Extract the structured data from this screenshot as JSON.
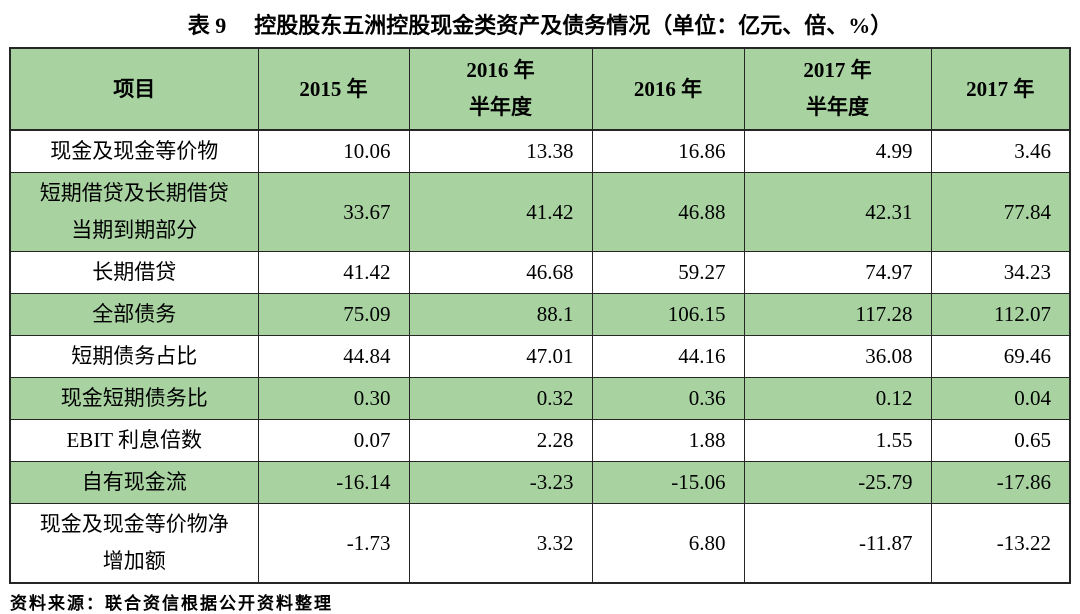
{
  "title": {
    "prefix": "表 9",
    "text": "控股股东五洲控股现金类资产及债务情况（单位：亿元、倍、%）"
  },
  "source_note": "资料来源：联合资信根据公开资料整理",
  "colors": {
    "table_green": "#a8d3a1",
    "border": "#262626",
    "text": "#000000"
  },
  "chart_data": {
    "type": "table",
    "columns": [
      {
        "label_lines": [
          "项目"
        ]
      },
      {
        "label_lines": [
          "2015 年"
        ]
      },
      {
        "label_lines": [
          "2016 年",
          "半年度"
        ]
      },
      {
        "label_lines": [
          "2016 年"
        ]
      },
      {
        "label_lines": [
          "2017 年",
          "半年度"
        ]
      },
      {
        "label_lines": [
          "2017 年"
        ]
      }
    ],
    "rows": [
      {
        "label_lines": [
          "现金及现金等价物"
        ],
        "values": [
          "10.06",
          "13.38",
          "16.86",
          "4.99",
          "3.46"
        ],
        "shaded": false
      },
      {
        "label_lines": [
          "短期借贷及长期借贷",
          "当期到期部分"
        ],
        "values": [
          "33.67",
          "41.42",
          "46.88",
          "42.31",
          "77.84"
        ],
        "shaded": true
      },
      {
        "label_lines": [
          "长期借贷"
        ],
        "values": [
          "41.42",
          "46.68",
          "59.27",
          "74.97",
          "34.23"
        ],
        "shaded": false
      },
      {
        "label_lines": [
          "全部债务"
        ],
        "values": [
          "75.09",
          "88.1",
          "106.15",
          "117.28",
          "112.07"
        ],
        "shaded": true
      },
      {
        "label_lines": [
          "短期债务占比"
        ],
        "values": [
          "44.84",
          "47.01",
          "44.16",
          "36.08",
          "69.46"
        ],
        "shaded": false
      },
      {
        "label_lines": [
          "现金短期债务比"
        ],
        "values": [
          "0.30",
          "0.32",
          "0.36",
          "0.12",
          "0.04"
        ],
        "shaded": true
      },
      {
        "label_lines": [
          "EBIT 利息倍数"
        ],
        "values": [
          "0.07",
          "2.28",
          "1.88",
          "1.55",
          "0.65"
        ],
        "shaded": false
      },
      {
        "label_lines": [
          "自有现金流"
        ],
        "values": [
          "-16.14",
          "-3.23",
          "-15.06",
          "-25.79",
          "-17.86"
        ],
        "shaded": true
      },
      {
        "label_lines": [
          "现金及现金等价物净",
          "增加额"
        ],
        "values": [
          "-1.73",
          "3.32",
          "6.80",
          "-11.87",
          "-13.22"
        ],
        "shaded": false
      }
    ]
  }
}
